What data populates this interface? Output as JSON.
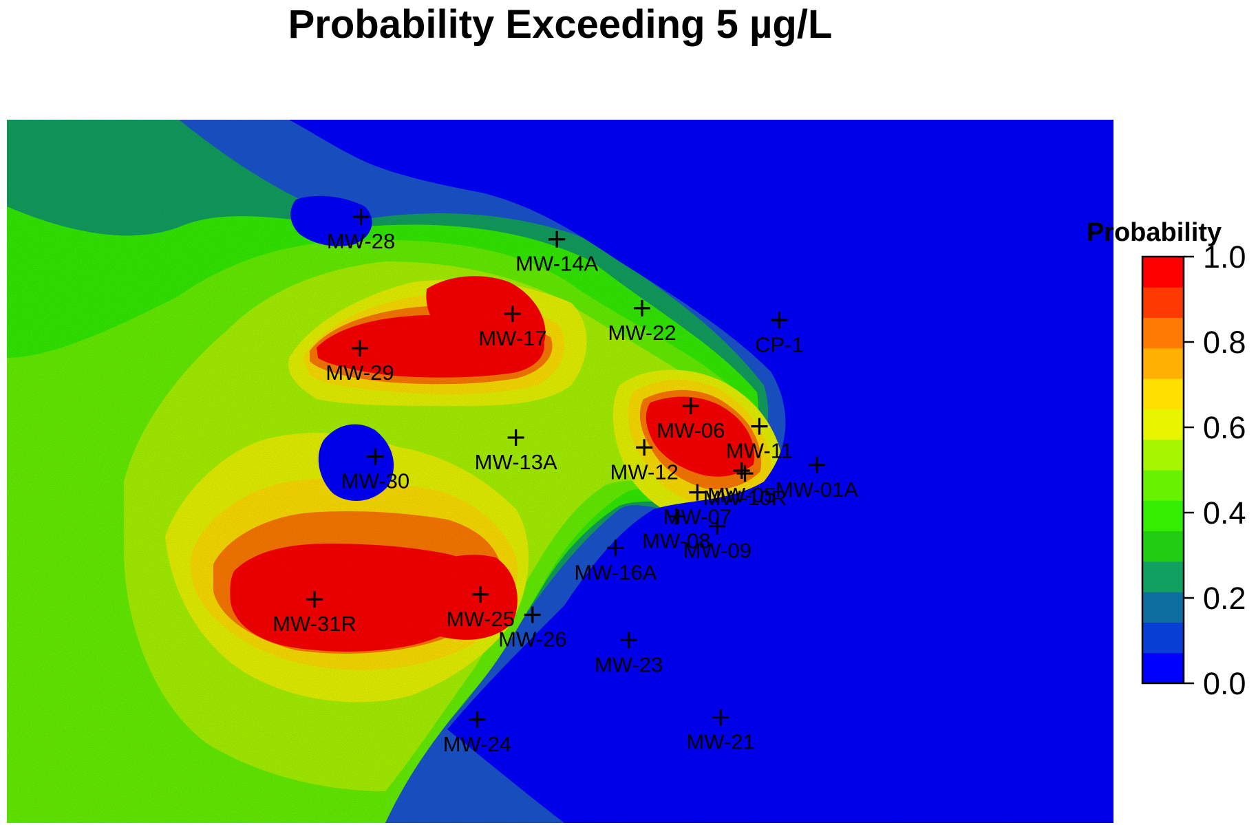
{
  "chart_data": {
    "type": "heatmap",
    "title": "Probability Exceeding 5 µg/L",
    "legend": {
      "title": "Probability",
      "placement": "right",
      "range": [
        0,
        1
      ],
      "ticks": [
        "0.0",
        "0.2",
        "0.4",
        "0.6",
        "0.8",
        "1.0"
      ],
      "colors": [
        "#0000ff",
        "#0a3fd6",
        "#0f6ea0",
        "#12a060",
        "#22cc10",
        "#33ee00",
        "#66f200",
        "#a8f500",
        "#e8f500",
        "#ffe000",
        "#ffb000",
        "#ff7a00",
        "#ff3a00",
        "#ff0000"
      ]
    },
    "axes": {
      "x_range": [
        0,
        100
      ],
      "y_range": [
        0,
        100
      ],
      "grid": false
    },
    "wells": [
      {
        "name": "MW-28",
        "x": 32.0,
        "y": 86.2
      },
      {
        "name": "MW-14A",
        "x": 49.7,
        "y": 83.0
      },
      {
        "name": "MW-29",
        "x": 31.9,
        "y": 67.5
      },
      {
        "name": "MW-17",
        "x": 45.7,
        "y": 72.4
      },
      {
        "name": "MW-22",
        "x": 57.4,
        "y": 73.2
      },
      {
        "name": "CP-1",
        "x": 69.8,
        "y": 71.5
      },
      {
        "name": "MW-06",
        "x": 61.8,
        "y": 59.3
      },
      {
        "name": "MW-11",
        "x": 68.0,
        "y": 56.4
      },
      {
        "name": "MW-05",
        "x": 66.4,
        "y": 50.1
      },
      {
        "name": "MW-01A",
        "x": 73.2,
        "y": 50.9
      },
      {
        "name": "MW-10R",
        "x": 66.7,
        "y": 49.7
      },
      {
        "name": "MW-12",
        "x": 57.6,
        "y": 53.4
      },
      {
        "name": "MW-07",
        "x": 62.4,
        "y": 47.0
      },
      {
        "name": "MW-08",
        "x": 60.5,
        "y": 43.6
      },
      {
        "name": "MW-09",
        "x": 64.2,
        "y": 42.2
      },
      {
        "name": "MW-13A",
        "x": 46.0,
        "y": 54.8
      },
      {
        "name": "MW-30",
        "x": 33.3,
        "y": 52.1
      },
      {
        "name": "MW-16A",
        "x": 55.0,
        "y": 39.1
      },
      {
        "name": "MW-31R",
        "x": 27.8,
        "y": 31.8
      },
      {
        "name": "MW-25",
        "x": 42.8,
        "y": 32.5
      },
      {
        "name": "MW-26",
        "x": 47.5,
        "y": 29.6
      },
      {
        "name": "MW-23",
        "x": 56.2,
        "y": 26.0
      },
      {
        "name": "MW-24",
        "x": 42.5,
        "y": 14.7
      },
      {
        "name": "MW-21",
        "x": 64.5,
        "y": 15.0
      }
    ]
  }
}
